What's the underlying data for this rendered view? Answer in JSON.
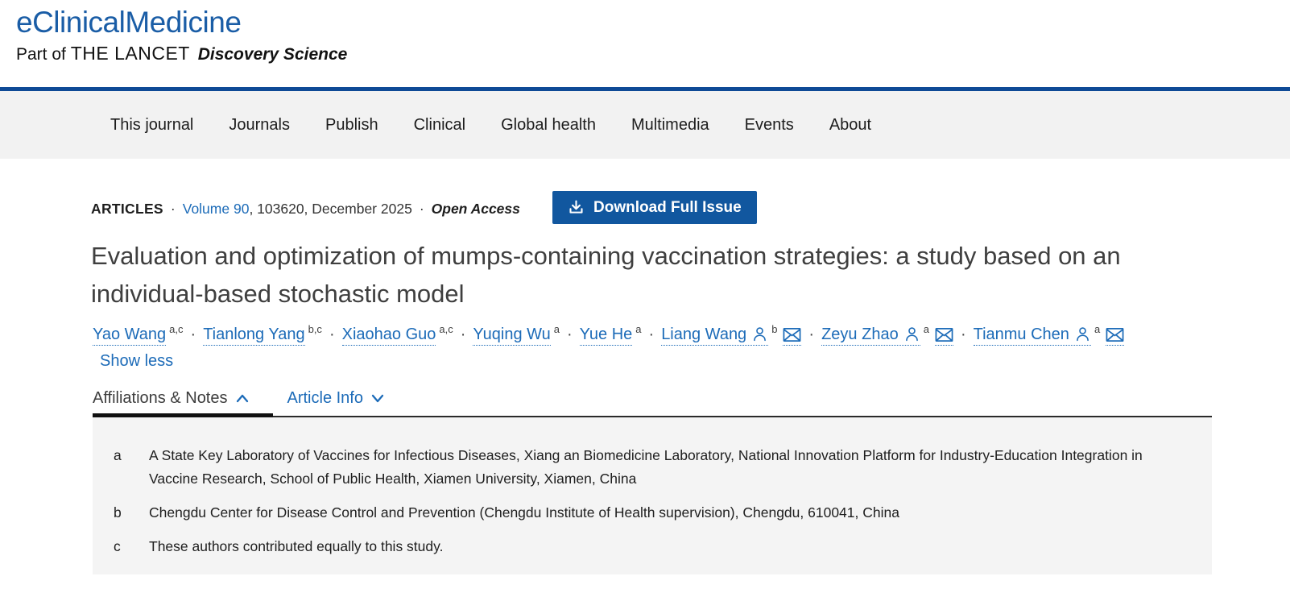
{
  "header": {
    "logo": "eClinicalMedicine",
    "tagline_prefix": "Part of",
    "tagline_brand": "THE LANCET",
    "tagline_suffix": "Discovery Science"
  },
  "nav": {
    "items": [
      "This journal",
      "Journals",
      "Publish",
      "Clinical",
      "Global health",
      "Multimedia",
      "Events",
      "About"
    ]
  },
  "meta": {
    "section_label": "ARTICLES",
    "separator": "·",
    "volume_link": "Volume 90",
    "issue_info": ", 103620, December 2025",
    "open_access": "Open Access",
    "download_button": "Download Full Issue"
  },
  "article": {
    "title": "Evaluation and optimization of mumps-containing vaccination strategies: a study based on an individual-based stochastic model",
    "show_less": "Show less"
  },
  "authors": [
    {
      "name": "Yao Wang",
      "sup": "a,c",
      "profile": false,
      "email": false
    },
    {
      "name": "Tianlong Yang",
      "sup": "b,c",
      "profile": false,
      "email": false
    },
    {
      "name": "Xiaohao Guo",
      "sup": "a,c",
      "profile": false,
      "email": false
    },
    {
      "name": "Yuqing Wu",
      "sup": "a",
      "profile": false,
      "email": false
    },
    {
      "name": "Yue He",
      "sup": "a",
      "profile": false,
      "email": false
    },
    {
      "name": "Liang Wang",
      "sup": "b",
      "profile": true,
      "email": true
    },
    {
      "name": "Zeyu Zhao",
      "sup": "a",
      "profile": true,
      "email": true
    },
    {
      "name": "Tianmu Chen",
      "sup": "a",
      "profile": true,
      "email": true
    }
  ],
  "tabs": [
    {
      "label": "Affiliations & Notes",
      "active": true,
      "chevron": "up"
    },
    {
      "label": "Article Info",
      "active": false,
      "chevron": "down"
    }
  ],
  "affiliations": [
    {
      "label": "a",
      "text": "A State Key Laboratory of Vaccines for Infectious Diseases, Xiang an Biomedicine Laboratory, National Innovation Platform for Industry-Education Integration in Vaccine Research, School of Public Health, Xiamen University, Xiamen, China"
    },
    {
      "label": "b",
      "text": "Chengdu Center for Disease Control and Prevention (Chengdu Institute of Health supervision), Chengdu, 610041, China"
    },
    {
      "label": "c",
      "text": "These authors contributed equally to this study."
    }
  ],
  "colors": {
    "logo_blue": "#1a5da6",
    "rule_blue": "#0e4a96",
    "link_blue": "#1c6bb8",
    "button_blue": "#11579f",
    "nav_background": "#f2f2f2",
    "panel_background": "#f4f4f4"
  },
  "icons": {
    "download": "download-icon",
    "profile": "person-icon",
    "email": "envelope-icon",
    "chevron_up": "chevron-up-icon",
    "chevron_down": "chevron-down-icon"
  }
}
